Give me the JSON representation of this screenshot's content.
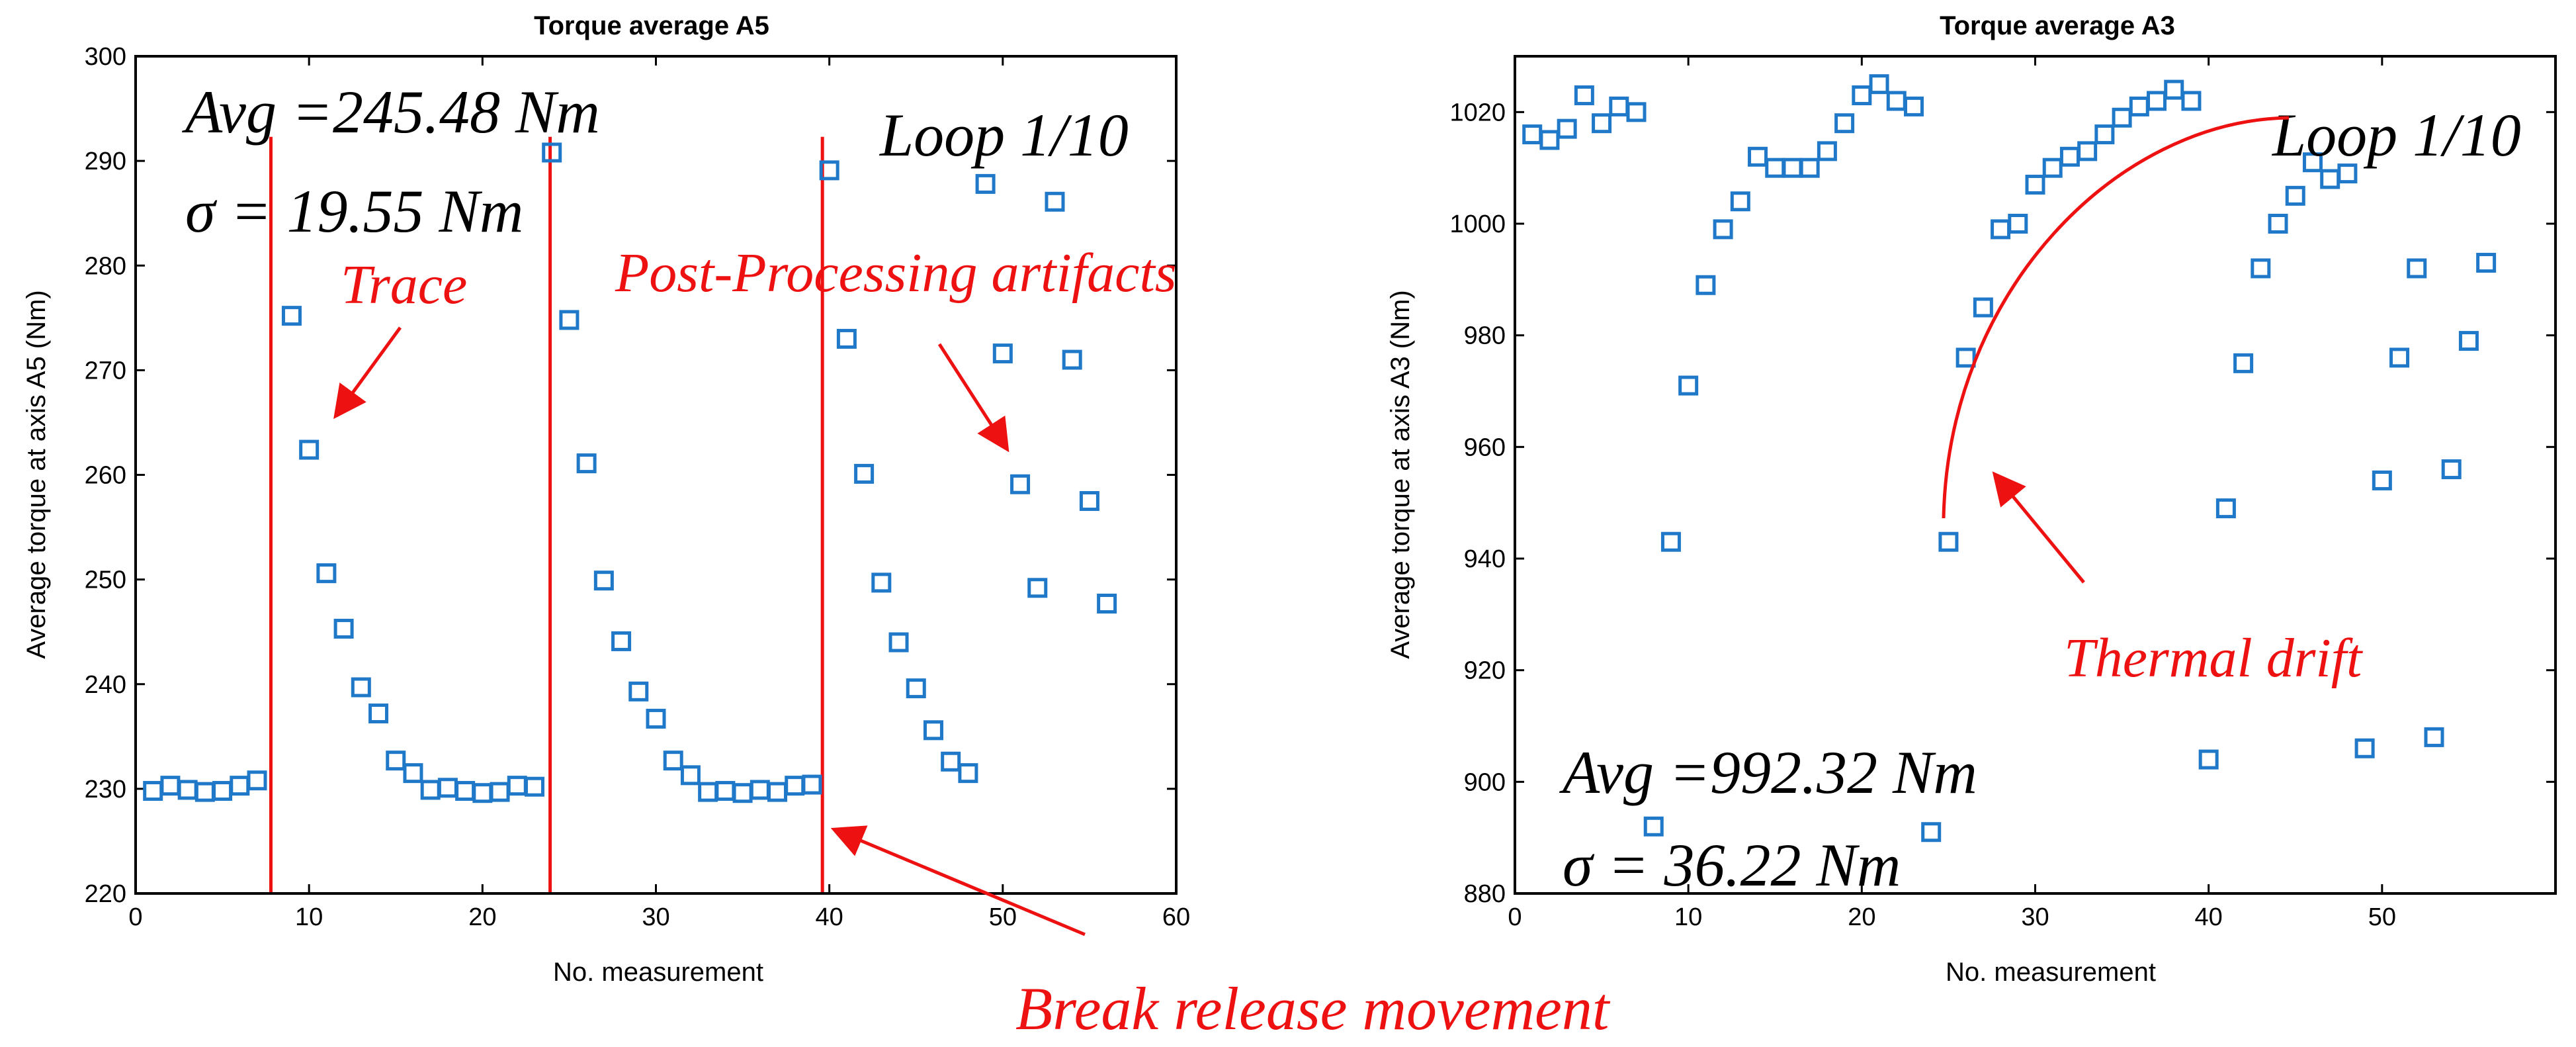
{
  "chart_data": [
    {
      "type": "scatter",
      "title": "Torque average A5",
      "xlabel": "No. measurement",
      "ylabel": "Average torque at axis A5 (Nm)",
      "xlim": [
        0,
        60
      ],
      "ylim": [
        220,
        300
      ],
      "xticks": [
        0,
        10,
        20,
        30,
        40,
        50,
        60
      ],
      "yticks": [
        220,
        230,
        240,
        250,
        260,
        270,
        280,
        290,
        300
      ],
      "series": [
        {
          "name": "Torque A5",
          "x": [
            1,
            2,
            3,
            4,
            5,
            6,
            7,
            9,
            10,
            11,
            12,
            13,
            14,
            15,
            16,
            17,
            18,
            19,
            20,
            21,
            22,
            23,
            24,
            25,
            26,
            27,
            28,
            29,
            30,
            31,
            32,
            33,
            34,
            35,
            36,
            37,
            38,
            39,
            40,
            41,
            42,
            43,
            44,
            45,
            46,
            47,
            48,
            49,
            50,
            51,
            52,
            53,
            54,
            55,
            56
          ],
          "y": [
            229.8,
            230.3,
            229.9,
            229.7,
            229.8,
            230.3,
            230.8,
            275.2,
            262.4,
            250.6,
            245.3,
            239.7,
            237.2,
            232.7,
            231.5,
            229.9,
            230.1,
            229.8,
            229.6,
            229.7,
            230.3,
            230.2,
            290.8,
            274.8,
            261.1,
            249.9,
            244.1,
            239.3,
            236.7,
            232.7,
            231.3,
            229.7,
            229.8,
            229.6,
            229.9,
            229.7,
            230.3,
            230.4,
            289.1,
            273.0,
            260.1,
            249.7,
            244.0,
            239.6,
            235.6,
            232.6,
            231.5,
            287.8,
            271.6,
            259.1,
            249.2,
            286.1,
            271.0,
            257.5,
            247.7
          ]
        }
      ],
      "vlines": [
        7.8,
        23.9,
        39.6
      ],
      "annotations": {
        "avg": "Avg =245.48 Nm",
        "sigma": "σ = 19.55 Nm",
        "loop": "Loop 1/10",
        "trace": "Trace",
        "post_processing": "Post-Processing artifacts"
      }
    },
    {
      "type": "scatter",
      "title": "Torque average A3",
      "xlabel": "No. measurement",
      "ylabel": "Average torque at axis A3 (Nm)",
      "xlim": [
        0,
        60
      ],
      "ylim": [
        880,
        1030
      ],
      "xticks": [
        0,
        10,
        20,
        30,
        40,
        50
      ],
      "yticks": [
        880,
        900,
        920,
        940,
        960,
        980,
        1000,
        1020
      ],
      "series": [
        {
          "name": "Torque A3",
          "x": [
            1,
            2,
            3,
            4,
            5,
            6,
            7,
            8,
            9,
            10,
            11,
            12,
            13,
            14,
            15,
            16,
            17,
            18,
            19,
            20,
            21,
            22,
            23,
            24,
            25,
            26,
            27,
            28,
            29,
            30,
            31,
            32,
            33,
            34,
            35,
            36,
            37,
            38,
            39,
            40,
            41,
            42,
            43,
            44,
            45,
            46,
            47,
            48,
            49,
            50,
            51,
            52,
            53,
            54,
            55,
            56
          ],
          "y": [
            1016,
            1015,
            1017,
            1023,
            1018,
            1021,
            1020,
            892,
            943,
            971,
            989,
            999,
            1004,
            1012,
            1010,
            1010,
            1010,
            1013,
            1018,
            1023,
            1025,
            1022,
            1021,
            891,
            943,
            976,
            985,
            999,
            1000,
            1007,
            1010,
            1012,
            1013,
            1016,
            1019,
            1021,
            1022,
            1024,
            1022,
            904,
            949,
            975,
            992,
            1000,
            1005,
            1011,
            1008,
            1009,
            906,
            954,
            976,
            992,
            908,
            956,
            979,
            993
          ]
        }
      ],
      "annotations": {
        "avg": "Avg =992.32 Nm",
        "sigma": "σ = 36.22 Nm",
        "loop": "Loop 1/10",
        "thermal": "Thermal drift"
      }
    }
  ],
  "figure_caption": "Break release movement",
  "colors": {
    "marker": "#1f78c8",
    "annotation": "#ee1111",
    "axis": "#000000"
  }
}
